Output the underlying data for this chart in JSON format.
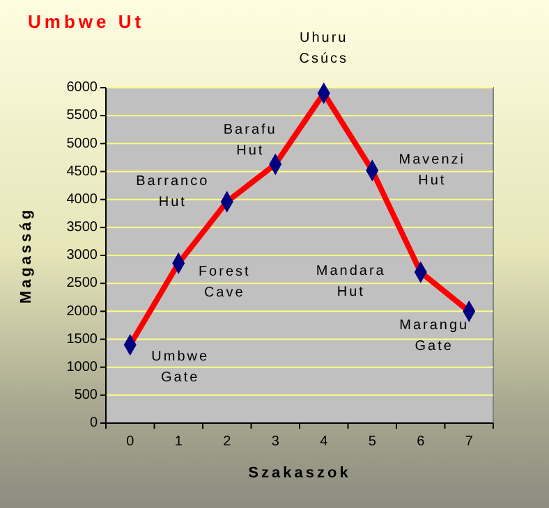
{
  "chart_data": {
    "type": "line",
    "title": "Umbwe Ut",
    "xlabel": "Szakaszok",
    "ylabel": "Magasság",
    "categories": [
      "0",
      "1",
      "2",
      "3",
      "4",
      "5",
      "6",
      "7"
    ],
    "series": [
      {
        "color": "#ff0000",
        "values": [
          1400,
          2860,
          3960,
          4630,
          5900,
          4520,
          2700,
          2000
        ]
      }
    ],
    "marker": "diamond",
    "grid": "y",
    "ylim": [
      0,
      6000
    ],
    "yticks": [
      0,
      500,
      1000,
      1500,
      2000,
      2500,
      3000,
      3500,
      4000,
      4500,
      5000,
      5500,
      6000
    ],
    "annotations": [
      {
        "text": "Umbwe\nGate",
        "x": "0",
        "y": 1400
      },
      {
        "text": "Forest\nCave",
        "x": "1",
        "y": 2860
      },
      {
        "text": "Barranco\nHut",
        "x": "2",
        "y": 3960
      },
      {
        "text": "Barafu\nHut",
        "x": "3",
        "y": 4630
      },
      {
        "text": "Uhuru\nCsúcs",
        "x": "4",
        "y": 5900
      },
      {
        "text": "Mavenzi\nHut",
        "x": "5",
        "y": 4520
      },
      {
        "text": "Mandara\nHut",
        "x": "6",
        "y": 2700
      },
      {
        "text": "Marangu\nGate",
        "x": "7",
        "y": 2000
      }
    ]
  }
}
